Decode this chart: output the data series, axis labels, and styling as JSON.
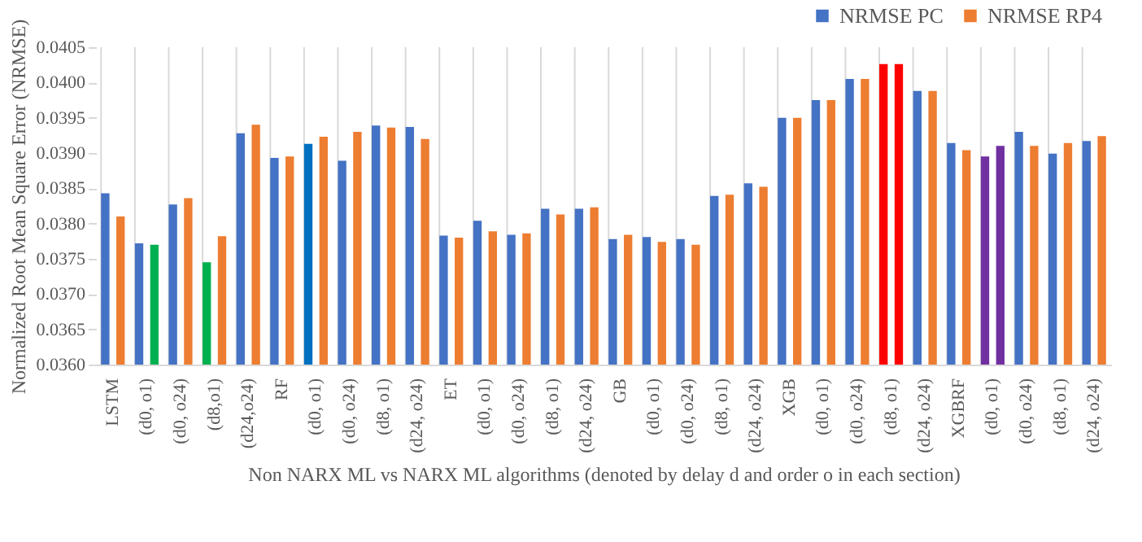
{
  "chart_data": {
    "type": "bar",
    "xlabel": "Non NARX ML vs NARX ML algorithms (denoted by delay d and order o in each section)",
    "ylabel": "Normalized Root Mean Square Error (NRMSE)",
    "categories": [
      "LSTM",
      "(d0, o1)",
      "(d0, o24)",
      "(d8,o1)",
      "(d24,o24)",
      "RF",
      "(d0, o1)",
      "(d0, o24)",
      "(d8, o1)",
      "(d24, o24)",
      "ET",
      "(d0, o1)",
      "(d0, o24)",
      "(d8, o1)",
      "(d24, o24)",
      "GB",
      "(d0, o1)",
      "(d0, o24)",
      "(d8, o1)",
      "(d24, o24)",
      "XGB",
      "(d0, o1)",
      "(d0, o24)",
      "(d8, o1)",
      "(d24, o24)",
      "XGBRF",
      "(d0, o1)",
      "(d0, o24)",
      "(d8, o1)",
      "(d24, o24)"
    ],
    "series": [
      {
        "name": "NRMSE PC",
        "color": "#4472c4",
        "colors": [
          "#4472c4",
          "#4472c4",
          "#4472c4",
          "#00b050",
          "#4472c4",
          "#4472c4",
          "#0070c0",
          "#4472c4",
          "#4472c4",
          "#4472c4",
          "#4472c4",
          "#4472c4",
          "#4472c4",
          "#4472c4",
          "#4472c4",
          "#4472c4",
          "#4472c4",
          "#4472c4",
          "#4472c4",
          "#4472c4",
          "#4472c4",
          "#4472c4",
          "#4472c4",
          "#ff0000",
          "#4472c4",
          "#4472c4",
          "#7030a0",
          "#4472c4",
          "#4472c4",
          "#4472c4"
        ],
        "values": [
          0.03843,
          0.03772,
          0.03827,
          0.03745,
          0.03928,
          0.03893,
          0.03913,
          0.03889,
          0.03939,
          0.03937,
          0.03783,
          0.03804,
          0.03784,
          0.03821,
          0.03821,
          0.03778,
          0.03781,
          0.03778,
          0.03839,
          0.03857,
          0.0395,
          0.03975,
          0.04005,
          0.04026,
          0.03988,
          0.03914,
          0.03895,
          0.0393,
          0.03899,
          0.03917
        ]
      },
      {
        "name": "NRMSE RP4",
        "color": "#ed7d31",
        "colors": [
          "#ed7d31",
          "#00b050",
          "#ed7d31",
          "#ed7d31",
          "#ed7d31",
          "#ed7d31",
          "#ed7d31",
          "#ed7d31",
          "#ed7d31",
          "#ed7d31",
          "#ed7d31",
          "#ed7d31",
          "#ed7d31",
          "#ed7d31",
          "#ed7d31",
          "#ed7d31",
          "#ed7d31",
          "#ed7d31",
          "#ed7d31",
          "#ed7d31",
          "#ed7d31",
          "#ed7d31",
          "#ed7d31",
          "#ff0000",
          "#ed7d31",
          "#ed7d31",
          "#7030a0",
          "#ed7d31",
          "#ed7d31",
          "#ed7d31"
        ],
        "values": [
          0.0381,
          0.0377,
          0.03836,
          0.03782,
          0.0394,
          0.03895,
          0.03923,
          0.0393,
          0.03936,
          0.0392,
          0.0378,
          0.03789,
          0.03786,
          0.03813,
          0.03823,
          0.03784,
          0.03774,
          0.0377,
          0.03841,
          0.03852,
          0.0395,
          0.03975,
          0.04005,
          0.04026,
          0.03988,
          0.03904,
          0.0391,
          0.0391,
          0.03914,
          0.03924
        ]
      }
    ],
    "ylim": [
      0.036,
      0.0405
    ],
    "yticks": [
      {
        "value": 0.036,
        "label": "0.0360"
      },
      {
        "value": 0.0365,
        "label": "0.0365"
      },
      {
        "value": 0.037,
        "label": "0.0370"
      },
      {
        "value": 0.0375,
        "label": "0.0375"
      },
      {
        "value": 0.038,
        "label": "0.0380"
      },
      {
        "value": 0.0385,
        "label": "0.0385"
      },
      {
        "value": 0.039,
        "label": "0.0390"
      },
      {
        "value": 0.0395,
        "label": "0.0395"
      },
      {
        "value": 0.04,
        "label": "0.0400"
      },
      {
        "value": 0.0405,
        "label": "0.0405"
      }
    ],
    "grid": "x",
    "legend": "top right"
  }
}
